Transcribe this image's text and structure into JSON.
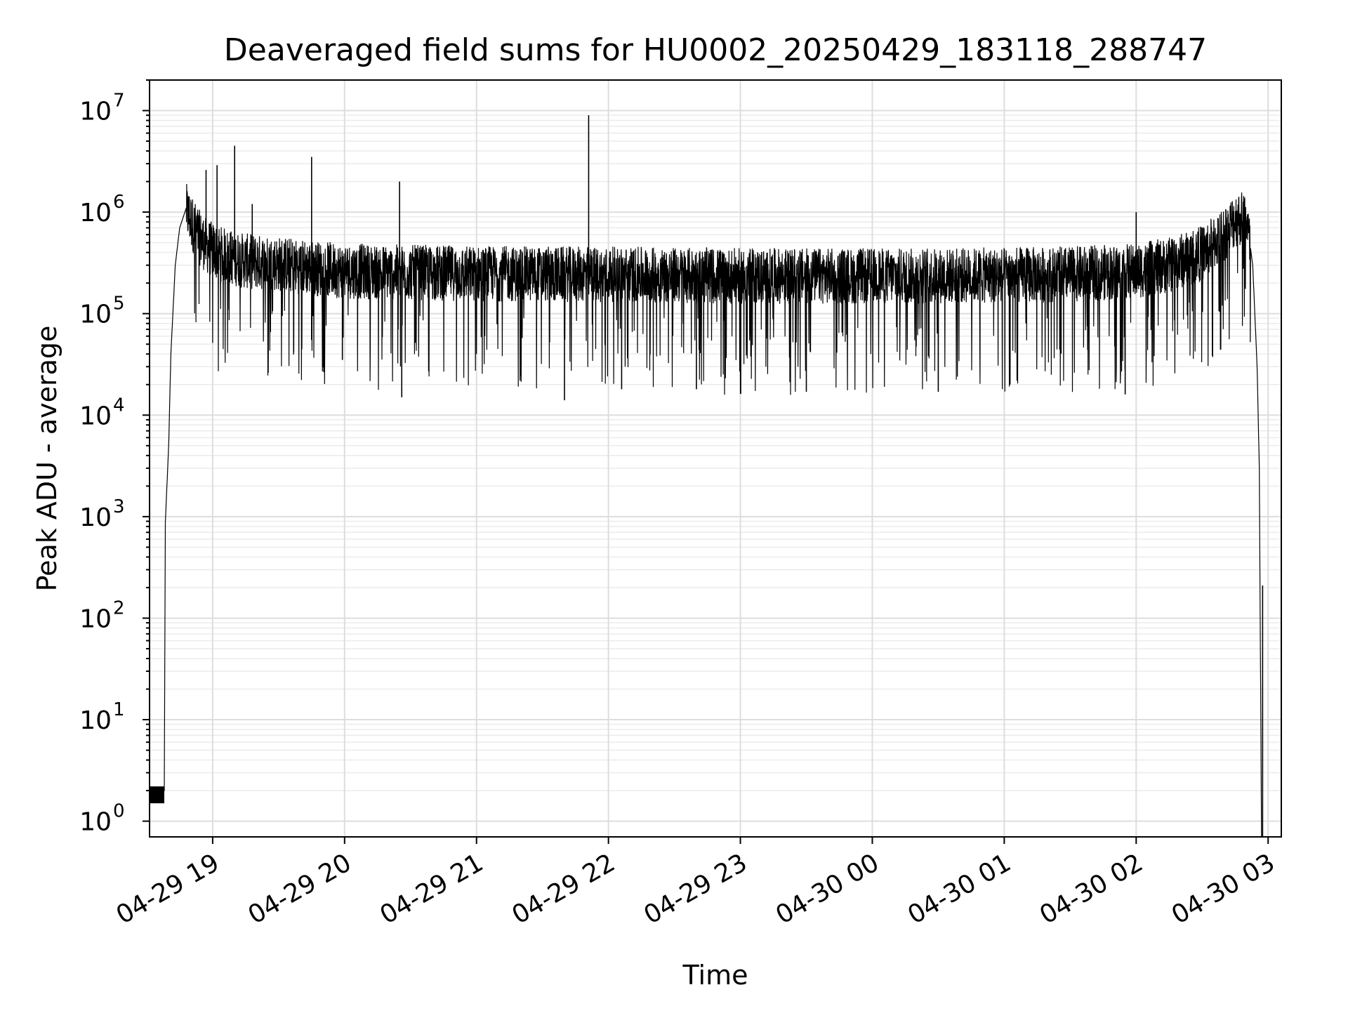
{
  "chart_data": {
    "type": "line",
    "title": "Deaveraged field sums for HU0002_20250429_183118_288747",
    "xlabel": "Time",
    "ylabel": "Peak ADU - average",
    "y_scale": "log",
    "ylim": [
      0.7,
      20000000
    ],
    "xlim": [
      "2025-04-29 18:31:18",
      "2025-04-30 03:06:00"
    ],
    "x_ticks": [
      "04-29 19",
      "04-29 20",
      "04-29 21",
      "04-29 22",
      "04-29 23",
      "04-30 00",
      "04-30 01",
      "04-30 02",
      "04-30 03"
    ],
    "y_tick_exponents": [
      "0",
      "1",
      "2",
      "3",
      "4",
      "5",
      "6",
      "7"
    ],
    "grid": true,
    "legend": "none",
    "line_color": "#000000",
    "series": [
      {
        "x": [
          "2025-04-29 18:31:18",
          "2025-04-29 18:38:00",
          "2025-04-29 18:38:30",
          "2025-04-29 18:40:00",
          "2025-04-29 18:41:00",
          "2025-04-29 18:43:00",
          "2025-04-29 18:45:00",
          "2025-04-29 18:48:00",
          "2025-04-29 18:51:00",
          "2025-04-29 18:54:00",
          "2025-04-29 18:57:00",
          "2025-04-29 19:00:00",
          "2025-04-29 19:05:00",
          "2025-04-29 19:15:00",
          "2025-04-29 19:30:00",
          "2025-04-29 19:45:00",
          "2025-04-29 20:00:00",
          "2025-04-29 20:30:00",
          "2025-04-29 21:00:00",
          "2025-04-29 21:30:00",
          "2025-04-29 22:00:00",
          "2025-04-29 22:30:00",
          "2025-04-29 23:00:00",
          "2025-04-29 23:30:00",
          "2025-04-30 00:00:00",
          "2025-04-30 00:30:00",
          "2025-04-30 01:00:00",
          "2025-04-30 01:30:00",
          "2025-04-30 02:00:00",
          "2025-04-30 02:15:00",
          "2025-04-30 02:30:00",
          "2025-04-30 02:40:00",
          "2025-04-30 02:45:00",
          "2025-04-30 02:50:00",
          "2025-04-30 02:53:00",
          "2025-04-30 02:55:00",
          "2025-04-30 02:56:00",
          "2025-04-30 02:57:00"
        ],
        "values": [
          2,
          2,
          900,
          5000,
          40000,
          300000,
          700000,
          1100000,
          800000,
          600000,
          500000,
          450000,
          400000,
          350000,
          330000,
          300000,
          280000,
          270000,
          265000,
          260000,
          260000,
          255000,
          250000,
          250000,
          250000,
          250000,
          255000,
          260000,
          280000,
          320000,
          420000,
          650000,
          900000,
          950000,
          300000,
          30000,
          3000,
          0.7
        ]
      }
    ],
    "spikes": [
      {
        "x": "2025-04-29 18:57:00",
        "value": 2600000
      },
      {
        "x": "2025-04-29 19:02:00",
        "value": 2900000
      },
      {
        "x": "2025-04-29 19:10:00",
        "value": 4500000
      },
      {
        "x": "2025-04-29 19:18:00",
        "value": 1200000
      },
      {
        "x": "2025-04-29 19:45:00",
        "value": 3500000
      },
      {
        "x": "2025-04-29 20:25:00",
        "value": 2000000
      },
      {
        "x": "2025-04-29 21:51:00",
        "value": 9000000
      },
      {
        "x": "2025-04-30 02:00:00",
        "value": 1000000
      },
      {
        "x": "2025-04-30 02:57:30",
        "value": 210
      }
    ],
    "dips": [
      {
        "x": "2025-04-29 19:45:00",
        "value": 55000
      },
      {
        "x": "2025-04-29 19:59:00",
        "value": 35000
      },
      {
        "x": "2025-04-29 20:26:00",
        "value": 15000
      },
      {
        "x": "2025-04-29 21:40:00",
        "value": 14000
      },
      {
        "x": "2025-04-29 22:06:00",
        "value": 18000
      },
      {
        "x": "2025-04-29 22:40:00",
        "value": 18000
      },
      {
        "x": "2025-04-29 23:30:00",
        "value": 17000
      },
      {
        "x": "2025-04-30 00:30:00",
        "value": 17000
      },
      {
        "x": "2025-04-30 01:55:00",
        "value": 16000
      }
    ]
  }
}
